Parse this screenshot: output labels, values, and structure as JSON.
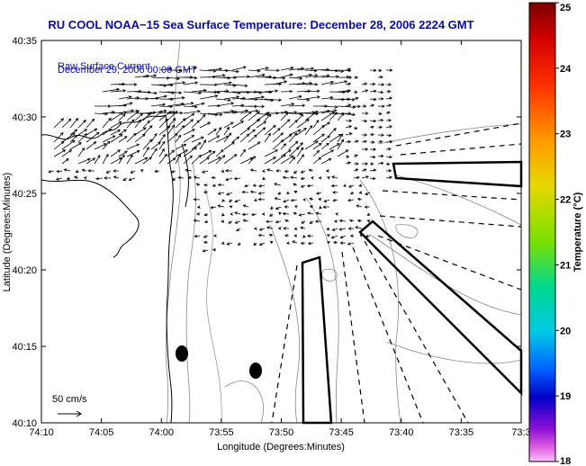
{
  "title": "RU COOL  NOAA−15  Sea Surface Temperature:  December 28, 2006 2224 GMT",
  "legend": {
    "line1": "Raw Surface Current",
    "line2": "December 29, 2006 00:00 GMT",
    "scale_label": "50 cm/s"
  },
  "axes": {
    "xlabel": "Longitude (Degrees:Minutes)",
    "ylabel": "Latitude (Degrees:Minutes)",
    "xticks": [
      "74:10",
      "74:05",
      "74:00",
      "73:55",
      "73:50",
      "73:45",
      "73:40",
      "73:35",
      "73:3"
    ],
    "yticks": [
      "40:35",
      "40:30",
      "40:25",
      "40:20",
      "40:15",
      "40:10"
    ]
  },
  "colorbar": {
    "label": "Temperature (°C)",
    "ticks": [
      "25",
      "24",
      "23",
      "22",
      "21",
      "20",
      "19",
      "18"
    ],
    "range": [
      18,
      25
    ]
  }
}
